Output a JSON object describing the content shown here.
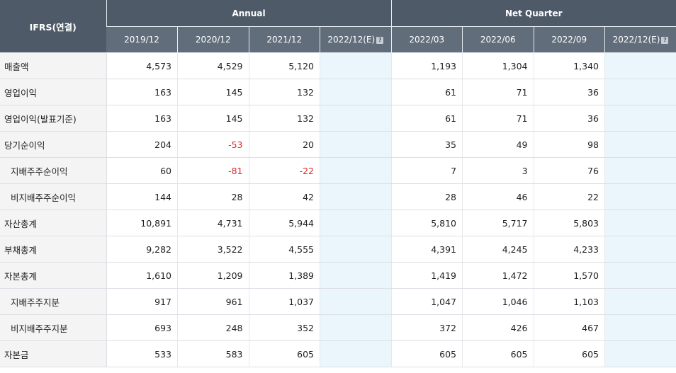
{
  "header": {
    "label": "IFRS(연결)",
    "annual": "Annual",
    "net_quarter": "Net Quarter",
    "periods": [
      "2019/12",
      "2020/12",
      "2021/12",
      "2022/12(E)",
      "2022/03",
      "2022/06",
      "2022/09",
      "2022/12(E)"
    ],
    "estimate_icon": "?"
  },
  "colors": {
    "header_bg": "#4e5a68",
    "subheader_bg": "#616d7b",
    "estimate_bg": "#eaf6fc",
    "negative": "#e0282e"
  },
  "rows": [
    {
      "label": "매출액",
      "sub": false,
      "values": [
        "4,573",
        "4,529",
        "5,120",
        "",
        "1,193",
        "1,304",
        "1,340",
        ""
      ]
    },
    {
      "label": "영업이익",
      "sub": false,
      "values": [
        "163",
        "145",
        "132",
        "",
        "61",
        "71",
        "36",
        ""
      ]
    },
    {
      "label": "영업이익(발표기준)",
      "sub": false,
      "values": [
        "163",
        "145",
        "132",
        "",
        "61",
        "71",
        "36",
        ""
      ]
    },
    {
      "label": "당기순이익",
      "sub": false,
      "values": [
        "204",
        "-53",
        "20",
        "",
        "35",
        "49",
        "98",
        ""
      ]
    },
    {
      "label": "지배주주순이익",
      "sub": true,
      "values": [
        "60",
        "-81",
        "-22",
        "",
        "7",
        "3",
        "76",
        ""
      ]
    },
    {
      "label": "비지배주주순이익",
      "sub": true,
      "values": [
        "144",
        "28",
        "42",
        "",
        "28",
        "46",
        "22",
        ""
      ]
    },
    {
      "label": "자산총계",
      "sub": false,
      "values": [
        "10,891",
        "4,731",
        "5,944",
        "",
        "5,810",
        "5,717",
        "5,803",
        ""
      ]
    },
    {
      "label": "부채총계",
      "sub": false,
      "values": [
        "9,282",
        "3,522",
        "4,555",
        "",
        "4,391",
        "4,245",
        "4,233",
        ""
      ]
    },
    {
      "label": "자본총계",
      "sub": false,
      "values": [
        "1,610",
        "1,209",
        "1,389",
        "",
        "1,419",
        "1,472",
        "1,570",
        ""
      ]
    },
    {
      "label": "지배주주지분",
      "sub": true,
      "values": [
        "917",
        "961",
        "1,037",
        "",
        "1,047",
        "1,046",
        "1,103",
        ""
      ]
    },
    {
      "label": "비지배주주지분",
      "sub": true,
      "values": [
        "693",
        "248",
        "352",
        "",
        "372",
        "426",
        "467",
        ""
      ]
    },
    {
      "label": "자본금",
      "sub": false,
      "values": [
        "533",
        "583",
        "605",
        "",
        "605",
        "605",
        "605",
        ""
      ]
    }
  ]
}
